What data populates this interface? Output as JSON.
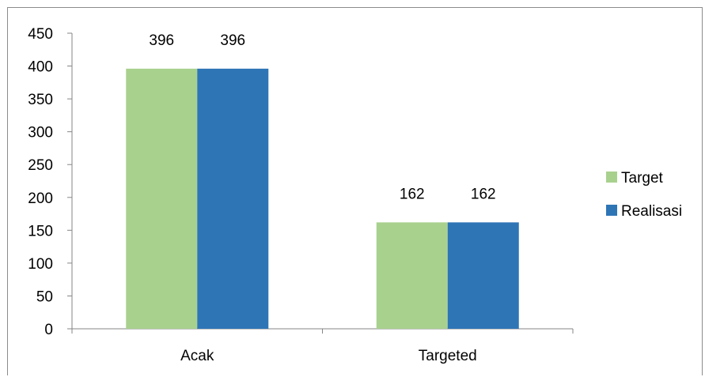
{
  "chart_data": {
    "type": "bar",
    "categories": [
      "Acak",
      "Targeted"
    ],
    "series": [
      {
        "name": "Target",
        "values": [
          396,
          162
        ],
        "color": "#a9d18e"
      },
      {
        "name": "Realisasi",
        "values": [
          396,
          162
        ],
        "color": "#2e75b6"
      }
    ],
    "ylim": [
      0,
      450
    ],
    "yticks": [
      0,
      50,
      100,
      150,
      200,
      250,
      300,
      350,
      400,
      450
    ],
    "data_labels": true,
    "grid": false,
    "legend_position": "right",
    "title": "",
    "xlabel": "",
    "ylabel": ""
  }
}
